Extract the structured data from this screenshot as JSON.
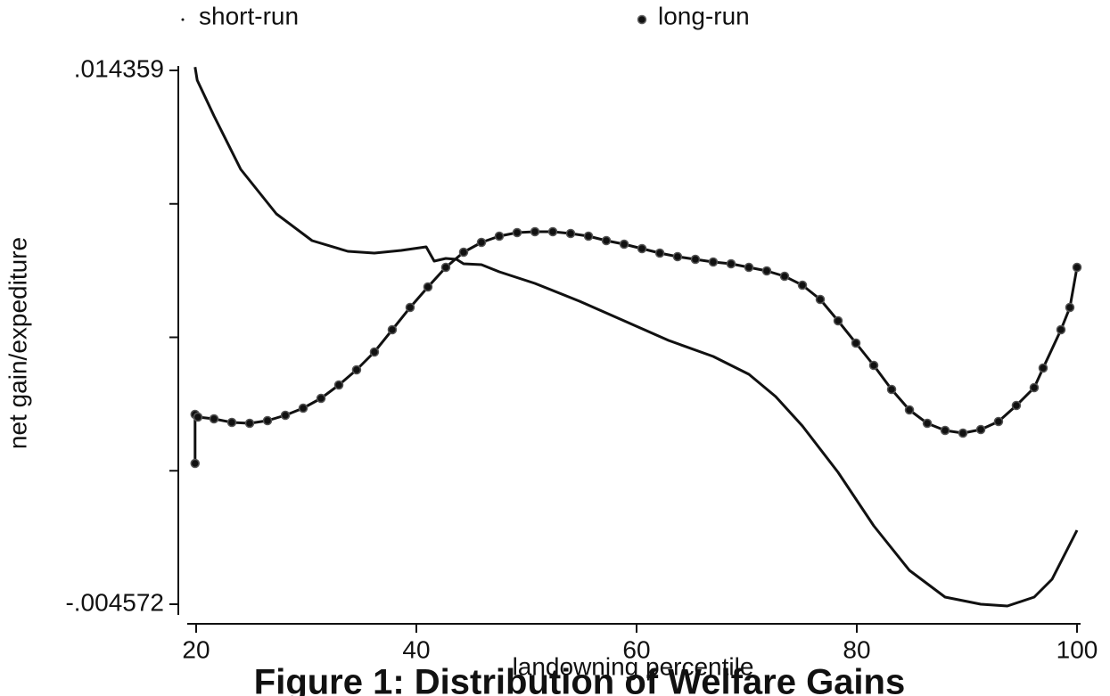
{
  "chart_data": {
    "type": "line",
    "title": "Figure 1: Distribution of Welfare Gains",
    "x_label": "landowning percentile",
    "y_label": "net gain/expediture",
    "legend_position": "top",
    "xlim": [
      20,
      100
    ],
    "xticks": [
      20,
      40,
      60,
      80,
      100
    ],
    "ylim": [
      -0.004572,
      0.014359
    ],
    "yticks": [
      {
        "value": -0.004572,
        "label": "-.004572"
      },
      {
        "value": 0.014359,
        "label": ".014359"
      }
    ],
    "series": [
      {
        "name": "short-run",
        "color": "#111111",
        "marker": "none",
        "x": [
          19.9,
          20.1,
          21.62,
          24.05,
          27.29,
          30.53,
          33.77,
          36.19,
          38.62,
          40.89,
          41.62,
          42.67,
          43.64,
          44.29,
          45.91,
          47.53,
          50.77,
          54.82,
          58.87,
          62.91,
          66.96,
          70.2,
          72.63,
          75.06,
          78.3,
          81.54,
          84.78,
          88.02,
          91.26,
          93.68,
          96.11,
          97.73,
          100
        ],
        "values": [
          0.01448,
          0.01401,
          0.012747,
          0.010851,
          0.009271,
          0.008322,
          0.007943,
          0.00788,
          0.007975,
          0.008101,
          0.007595,
          0.00769,
          0.007659,
          0.007501,
          0.007469,
          0.007216,
          0.006805,
          0.006173,
          0.005478,
          0.004783,
          0.004214,
          0.003581,
          0.002791,
          0.001748,
          0.000105,
          -0.001791,
          -0.003372,
          -0.00432,
          -0.004572,
          -0.004635,
          -0.00432,
          -0.003688,
          -0.00195
        ]
      },
      {
        "name": "long-run",
        "color": "#111111",
        "marker": "circle",
        "x": [
          19.9,
          19.9,
          20.16,
          21.62,
          23.24,
          24.86,
          26.48,
          28.1,
          29.72,
          31.34,
          32.96,
          34.57,
          36.19,
          37.81,
          39.43,
          41.05,
          42.67,
          44.29,
          45.91,
          47.53,
          49.15,
          50.77,
          52.39,
          54.01,
          55.63,
          57.25,
          58.87,
          60.49,
          62.11,
          63.72,
          65.34,
          66.96,
          68.58,
          70.2,
          71.82,
          73.44,
          75.06,
          76.68,
          78.3,
          79.92,
          81.54,
          83.16,
          84.78,
          86.4,
          88.02,
          89.64,
          91.26,
          92.87,
          94.49,
          96.11,
          96.92,
          98.54,
          99.35,
          100
        ],
        "values": [
          0.000421,
          0.00216,
          0.002065,
          0.002002,
          0.001875,
          0.001844,
          0.001939,
          0.002128,
          0.002381,
          0.002729,
          0.003203,
          0.00374,
          0.004372,
          0.005162,
          0.005952,
          0.006679,
          0.007374,
          0.007912,
          0.008259,
          0.00848,
          0.008607,
          0.008638,
          0.008638,
          0.008575,
          0.00848,
          0.008322,
          0.008196,
          0.008038,
          0.00788,
          0.007753,
          0.007659,
          0.007564,
          0.007501,
          0.007374,
          0.007248,
          0.007058,
          0.006742,
          0.006236,
          0.005478,
          0.004688,
          0.003898,
          0.003044,
          0.002318,
          0.001844,
          0.001591,
          0.001496,
          0.001622,
          0.001907,
          0.002476,
          0.003108,
          0.003803,
          0.005162,
          0.005952,
          0.007374
        ]
      }
    ]
  }
}
